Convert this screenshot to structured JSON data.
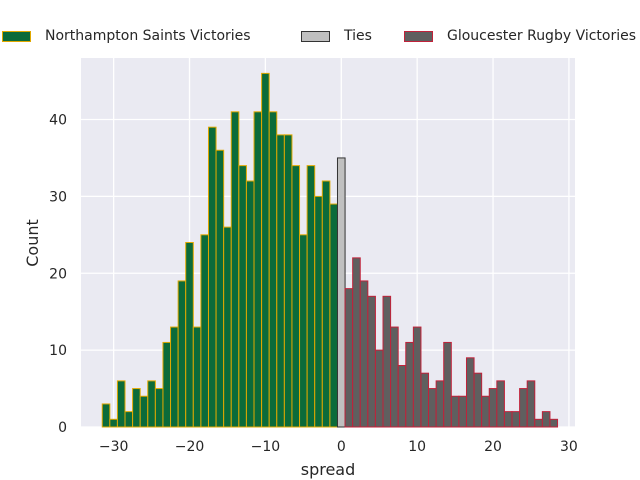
{
  "chart_data": {
    "type": "bar",
    "xlabel": "spread",
    "ylabel": "Count",
    "xlim": [
      -34.3,
      30.8
    ],
    "ylim": [
      0,
      48
    ],
    "xticks": [
      -30,
      -20,
      -10,
      0,
      10,
      20,
      30
    ],
    "xtick_labels": [
      "−30",
      "−20",
      "−10",
      "0",
      "10",
      "20",
      "30"
    ],
    "yticks": [
      0,
      10,
      20,
      30,
      40
    ],
    "yticklabels": [
      "0",
      "10",
      "20",
      "30",
      "40"
    ],
    "grid": true,
    "legend_position": "top",
    "bin_width": 1,
    "series": [
      {
        "name": "Northampton Saints Victories",
        "color": "#0b6b3a",
        "edgecolor": "#e0a800",
        "x": [
          -31,
          -30,
          -29,
          -28,
          -27,
          -26,
          -25,
          -24,
          -23,
          -22,
          -21,
          -20,
          -19,
          -18,
          -17,
          -16,
          -15,
          -14,
          -13,
          -12,
          -11,
          -10,
          -9,
          -8,
          -7,
          -6,
          -5,
          -4,
          -3,
          -2,
          -1
        ],
        "values": [
          3,
          1,
          6,
          2,
          5,
          4,
          6,
          5,
          11,
          13,
          19,
          24,
          13,
          25,
          39,
          36,
          26,
          41,
          34,
          32,
          41,
          46,
          41,
          38,
          38,
          34,
          25,
          34,
          30,
          32,
          29
        ]
      },
      {
        "name": "Ties",
        "color": "#c0c0c0",
        "edgecolor": "#333333",
        "x": [
          0
        ],
        "values": [
          35
        ]
      },
      {
        "name": "Gloucester Rugby Victories",
        "color": "#5f5f5f",
        "edgecolor": "#c0223a",
        "x": [
          1,
          2,
          3,
          4,
          5,
          6,
          7,
          8,
          9,
          10,
          11,
          12,
          13,
          14,
          15,
          16,
          17,
          18,
          19,
          20,
          21,
          22,
          23,
          24,
          25,
          26,
          27,
          28
        ],
        "values": [
          18,
          22,
          19,
          17,
          10,
          17,
          13,
          8,
          11,
          13,
          7,
          5,
          6,
          11,
          4,
          4,
          9,
          7,
          4,
          5,
          6,
          2,
          2,
          5,
          6,
          1,
          2,
          1
        ]
      }
    ]
  }
}
